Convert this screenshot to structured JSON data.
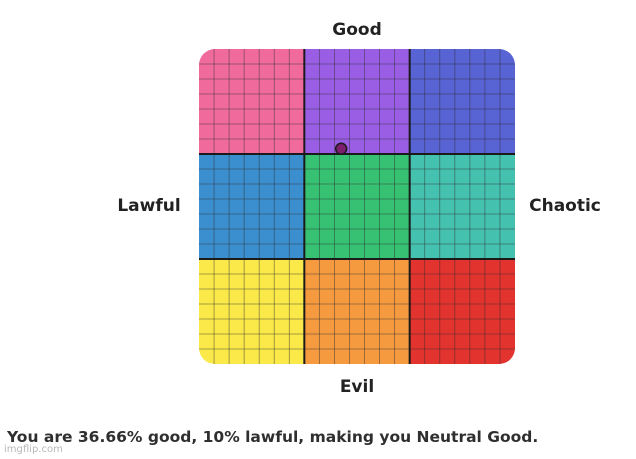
{
  "chart_data": {
    "type": "scatter",
    "axes": {
      "top": "Good",
      "bottom": "Evil",
      "left": "Lawful",
      "right": "Chaotic"
    },
    "x_range": [
      -1,
      1
    ],
    "y_range": [
      -1,
      1
    ],
    "grid_divisions": 3,
    "minor_grid_per_cell": 7,
    "cells": [
      {
        "row": 0,
        "col": 0,
        "color": "#f06b9c"
      },
      {
        "row": 0,
        "col": 1,
        "color": "#9a5ee5"
      },
      {
        "row": 0,
        "col": 2,
        "color": "#5863d4"
      },
      {
        "row": 1,
        "col": 0,
        "color": "#3b8fcf"
      },
      {
        "row": 1,
        "col": 1,
        "color": "#36c272"
      },
      {
        "row": 1,
        "col": 2,
        "color": "#45c1b0"
      },
      {
        "row": 2,
        "col": 0,
        "color": "#fbe94a"
      },
      {
        "row": 2,
        "col": 1,
        "color": "#f69a40"
      },
      {
        "row": 2,
        "col": 2,
        "color": "#e3332e"
      }
    ],
    "points": [
      {
        "x": -0.1,
        "y": 0.3666,
        "color": "#7b1f6e"
      }
    ]
  },
  "result_text": "You are 36.66% good, 10% lawful, making you Neutral Good.",
  "watermark": "imgflip.com"
}
